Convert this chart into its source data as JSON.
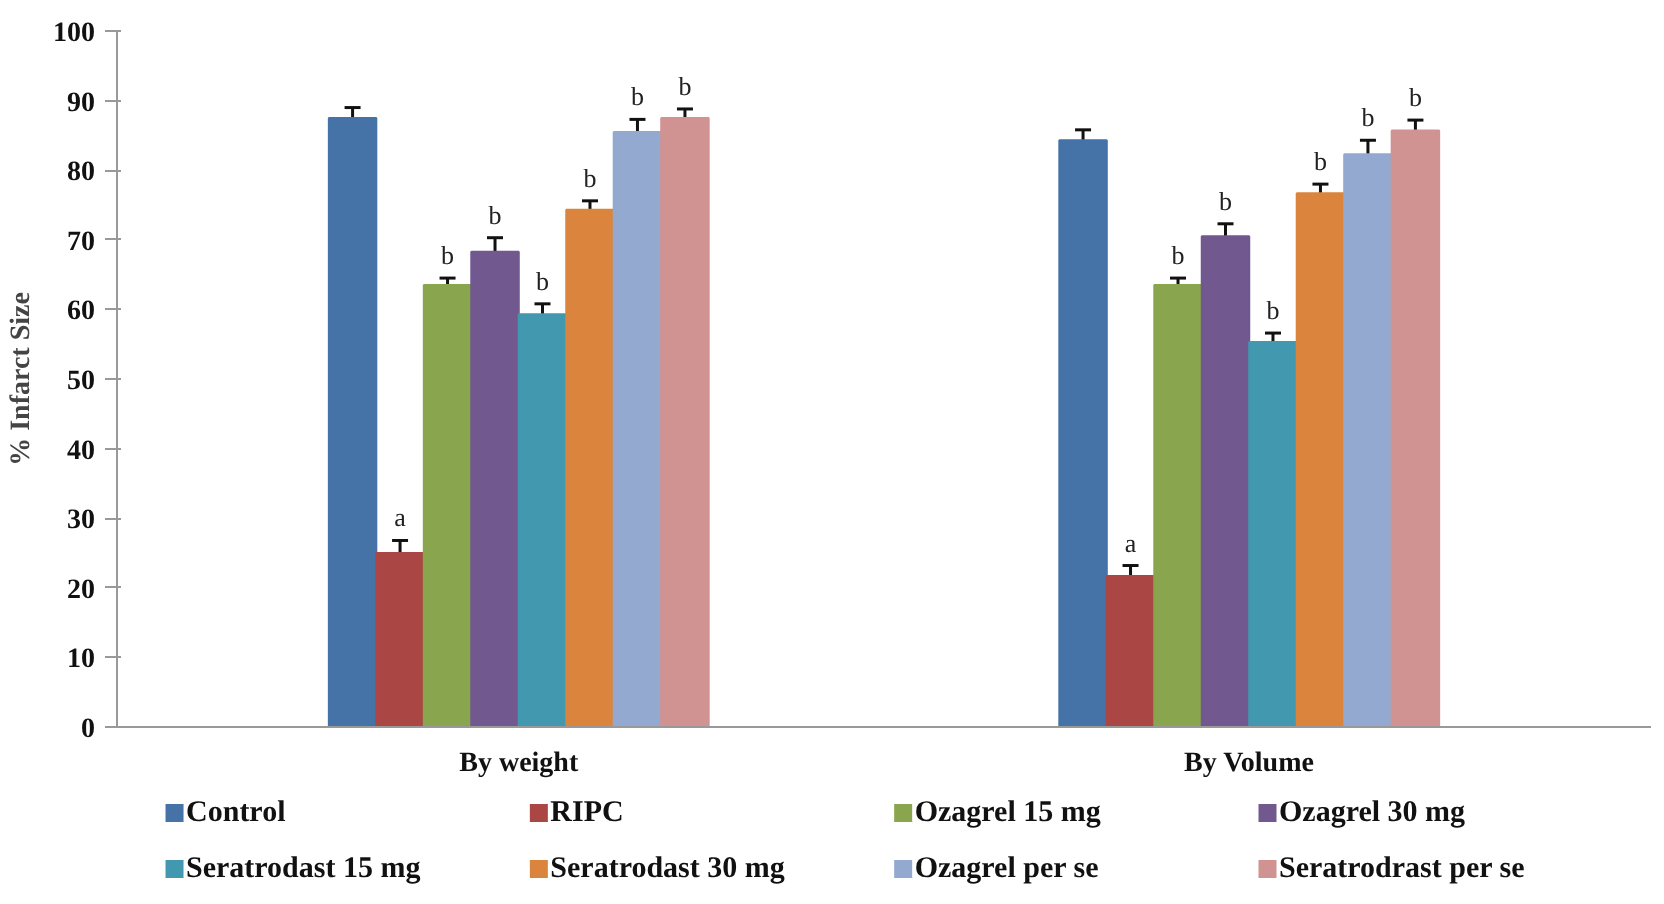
{
  "chart_data": {
    "type": "bar",
    "ylabel": "% Infarct Size",
    "categories": [
      "By weight",
      "By Volume"
    ],
    "ylim": [
      0,
      100
    ],
    "yticks": [
      0,
      10,
      20,
      30,
      40,
      50,
      60,
      70,
      80,
      90,
      100
    ],
    "grid": false,
    "legend": "bottom",
    "series": [
      {
        "name": "Control",
        "color": "#4572a7",
        "values": [
          87.5,
          84.3
        ],
        "errors": [
          1.5,
          1.5
        ]
      },
      {
        "name": "RIPC",
        "color": "#aa4643",
        "values": [
          25,
          21.7
        ],
        "errors": [
          1.8,
          1.5
        ],
        "value_labels": [
          "a",
          "a"
        ]
      },
      {
        "name": "Ozagrel 15 mg",
        "color": "#89a54e",
        "values": [
          63.5,
          63.5
        ],
        "errors": [
          1,
          1
        ],
        "value_labels": [
          "b",
          "b"
        ]
      },
      {
        "name": "Ozagrel 30 mg",
        "color": "#71588f",
        "values": [
          68.3,
          70.5
        ],
        "errors": [
          2,
          1.8
        ],
        "value_labels": [
          "b",
          "b"
        ]
      },
      {
        "name": "Seratrodast 15 mg",
        "color": "#4198af",
        "values": [
          59.3,
          55.3
        ],
        "errors": [
          1.5,
          1.3
        ],
        "value_labels": [
          "b",
          "b"
        ]
      },
      {
        "name": "Seratrodast 30 mg",
        "color": "#db843d",
        "values": [
          74.3,
          76.7
        ],
        "errors": [
          1.3,
          1.3
        ],
        "value_labels": [
          "b",
          "b"
        ]
      },
      {
        "name": "Ozagrel per se",
        "color": "#93a9cf",
        "values": [
          85.5,
          82.3
        ],
        "errors": [
          1.8,
          2
        ],
        "value_labels": [
          "b",
          "b"
        ]
      },
      {
        "name": "Seratrodrast per se",
        "color": "#d19392",
        "values": [
          87.5,
          85.7
        ],
        "errors": [
          1.3,
          1.5
        ],
        "value_labels": [
          "b",
          "b"
        ]
      }
    ]
  }
}
